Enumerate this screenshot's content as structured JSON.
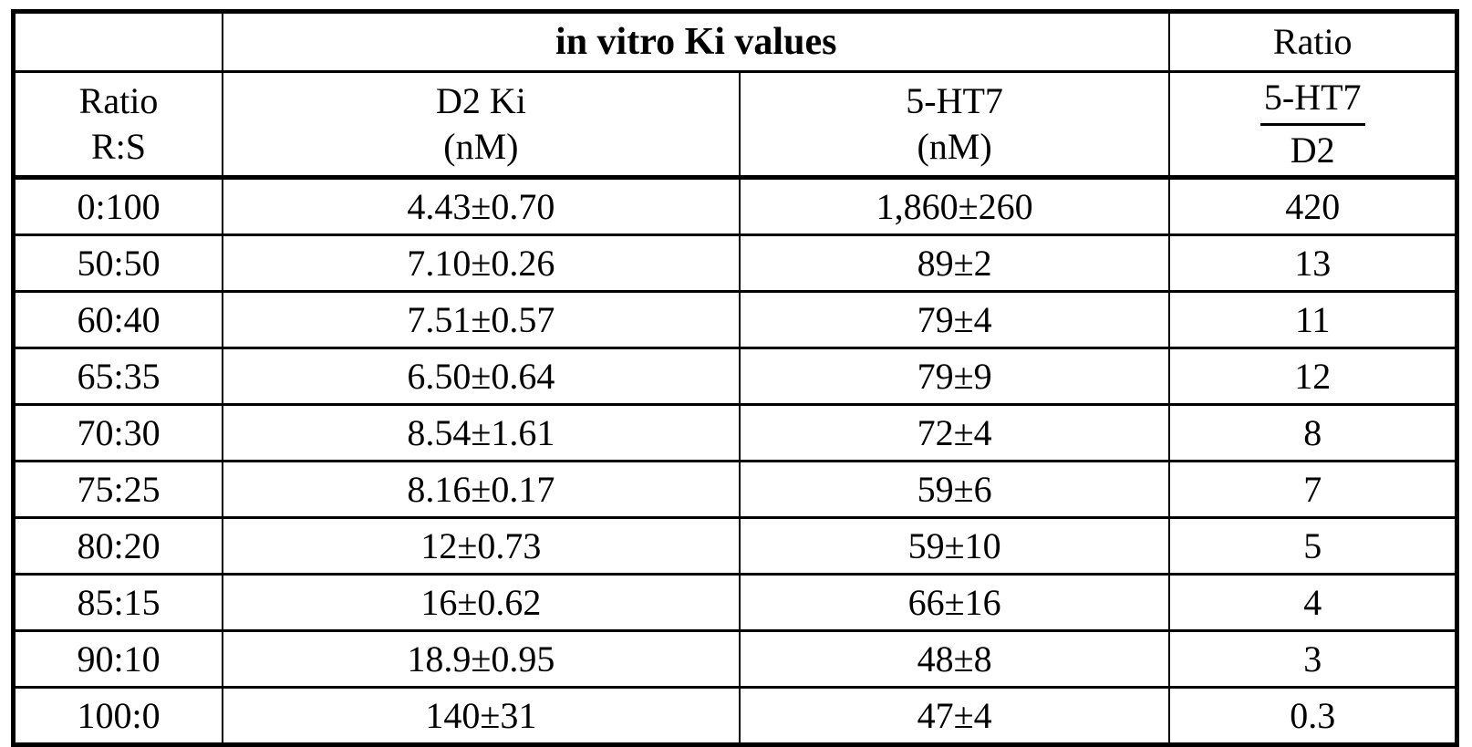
{
  "table": {
    "top_header": {
      "corner": "",
      "in_vitro_title": "in vitro Ki values",
      "ratio_label": "Ratio"
    },
    "column_headers": {
      "ratio_line1": "Ratio",
      "ratio_line2": "R:S",
      "d2_line1": "D2 Ki",
      "d2_line2": "(nM)",
      "ht7_line1": "5-HT7",
      "ht7_line2": "(nM)",
      "selectivity_numerator": "5-HT7",
      "selectivity_denominator": "D2"
    },
    "rows": [
      {
        "ratio": "0:100",
        "d2_ki": "4.43±0.70",
        "ht7_ki": "1,860±260",
        "selectivity": "420"
      },
      {
        "ratio": "50:50",
        "d2_ki": "7.10±0.26",
        "ht7_ki": "89±2",
        "selectivity": "13"
      },
      {
        "ratio": "60:40",
        "d2_ki": "7.51±0.57",
        "ht7_ki": "79±4",
        "selectivity": "11"
      },
      {
        "ratio": "65:35",
        "d2_ki": "6.50±0.64",
        "ht7_ki": "79±9",
        "selectivity": "12"
      },
      {
        "ratio": "70:30",
        "d2_ki": "8.54±1.61",
        "ht7_ki": "72±4",
        "selectivity": "8"
      },
      {
        "ratio": "75:25",
        "d2_ki": "8.16±0.17",
        "ht7_ki": "59±6",
        "selectivity": "7"
      },
      {
        "ratio": "80:20",
        "d2_ki": "12±0.73",
        "ht7_ki": "59±10",
        "selectivity": "5"
      },
      {
        "ratio": "85:15",
        "d2_ki": "16±0.62",
        "ht7_ki": "66±16",
        "selectivity": "4"
      },
      {
        "ratio": "90:10",
        "d2_ki": "18.9±0.95",
        "ht7_ki": "48±8",
        "selectivity": "3"
      },
      {
        "ratio": "100:0",
        "d2_ki": "140±31",
        "ht7_ki": "47±4",
        "selectivity": "0.3"
      }
    ]
  }
}
